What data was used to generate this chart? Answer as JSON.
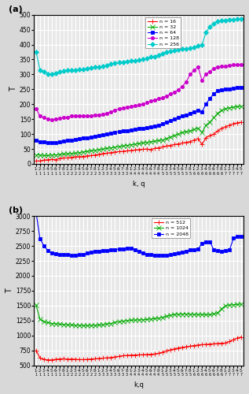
{
  "title_a": "(a)",
  "title_b": "(b)",
  "xlabel": "k, q",
  "xlabel_b": "k,q",
  "ylabel": "T",
  "background_color": "#e8e8e8",
  "grid_color": "#ffffff",
  "legend_a": [
    "n = 16",
    "n = 32",
    "n = 64",
    "n = 128",
    "n = 256"
  ],
  "legend_b": [
    "n = 512",
    "n = 1024",
    "n = 2048"
  ],
  "colors_a": [
    "#ff0000",
    "#00aa00",
    "#0000ff",
    "#cc00cc",
    "#00cccc"
  ],
  "colors_b": [
    "#ff0000",
    "#00aa00",
    "#0000ff"
  ],
  "ylim_a": [
    0,
    500
  ],
  "ylim_b": [
    500,
    3000
  ],
  "yticks_a": [
    0,
    50,
    100,
    150,
    200,
    250,
    300,
    350,
    400,
    450,
    500
  ],
  "yticks_b": [
    500,
    750,
    1000,
    1250,
    1500,
    1750,
    2000,
    2250,
    2500,
    2750,
    3000
  ],
  "n16": [
    10,
    10,
    13,
    14,
    15,
    14,
    18,
    20,
    20,
    22,
    24,
    24,
    25,
    27,
    28,
    30,
    32,
    35,
    36,
    38,
    40,
    41,
    42,
    44,
    45,
    47,
    48,
    49,
    50,
    48,
    52,
    54,
    57,
    60,
    62,
    65,
    67,
    70,
    72,
    75,
    80,
    85,
    65,
    88,
    95,
    100,
    110,
    120,
    125,
    130,
    135,
    138,
    140
  ],
  "n32": [
    30,
    30,
    28,
    28,
    30,
    30,
    32,
    33,
    34,
    35,
    36,
    38,
    40,
    42,
    44,
    46,
    48,
    50,
    52,
    54,
    56,
    58,
    60,
    62,
    64,
    66,
    68,
    70,
    72,
    74,
    76,
    78,
    80,
    85,
    90,
    95,
    100,
    105,
    108,
    110,
    115,
    120,
    105,
    130,
    140,
    155,
    170,
    180,
    185,
    188,
    190,
    192,
    193
  ],
  "n64": [
    80,
    75,
    73,
    72,
    72,
    72,
    74,
    76,
    78,
    80,
    82,
    84,
    86,
    88,
    90,
    92,
    95,
    98,
    100,
    103,
    106,
    108,
    110,
    112,
    114,
    116,
    118,
    120,
    122,
    124,
    126,
    130,
    135,
    140,
    145,
    150,
    155,
    160,
    165,
    170,
    175,
    180,
    175,
    200,
    220,
    235,
    245,
    248,
    250,
    252,
    253,
    255,
    256
  ],
  "n128": [
    185,
    160,
    155,
    150,
    148,
    150,
    152,
    155,
    157,
    160,
    162,
    162,
    160,
    160,
    162,
    163,
    165,
    167,
    170,
    175,
    180,
    185,
    188,
    190,
    192,
    195,
    197,
    200,
    205,
    210,
    215,
    218,
    222,
    228,
    234,
    240,
    248,
    260,
    275,
    300,
    315,
    325,
    280,
    300,
    310,
    320,
    325,
    327,
    328,
    330,
    332,
    333,
    333
  ],
  "n256": [
    375,
    315,
    310,
    302,
    302,
    305,
    308,
    312,
    315,
    315,
    315,
    316,
    318,
    320,
    322,
    324,
    325,
    327,
    330,
    335,
    338,
    340,
    342,
    344,
    345,
    347,
    348,
    350,
    353,
    358,
    360,
    365,
    370,
    375,
    378,
    380,
    382,
    385,
    386,
    388,
    390,
    395,
    400,
    440,
    460,
    470,
    478,
    480,
    482,
    483,
    484,
    485,
    485
  ],
  "n512": [
    750,
    620,
    600,
    590,
    590,
    600,
    605,
    610,
    600,
    605,
    600,
    595,
    595,
    600,
    605,
    610,
    615,
    620,
    625,
    630,
    640,
    650,
    660,
    665,
    670,
    672,
    675,
    678,
    680,
    685,
    690,
    700,
    720,
    740,
    760,
    775,
    790,
    800,
    810,
    820,
    830,
    840,
    845,
    850,
    855,
    860,
    865,
    870,
    875,
    900,
    930,
    960,
    975
  ],
  "n1024": [
    1510,
    1270,
    1230,
    1215,
    1200,
    1195,
    1190,
    1185,
    1180,
    1175,
    1170,
    1170,
    1165,
    1165,
    1168,
    1170,
    1175,
    1180,
    1195,
    1200,
    1220,
    1230,
    1240,
    1250,
    1255,
    1258,
    1260,
    1262,
    1268,
    1275,
    1280,
    1290,
    1305,
    1320,
    1338,
    1350,
    1355,
    1358,
    1358,
    1355,
    1352,
    1350,
    1350,
    1348,
    1350,
    1360,
    1380,
    1450,
    1500,
    1510,
    1515,
    1520,
    1525
  ],
  "n2048": [
    3060,
    2620,
    2500,
    2420,
    2385,
    2370,
    2360,
    2355,
    2350,
    2345,
    2345,
    2350,
    2360,
    2380,
    2395,
    2405,
    2415,
    2420,
    2425,
    2430,
    2440,
    2450,
    2455,
    2460,
    2465,
    2430,
    2410,
    2380,
    2360,
    2350,
    2345,
    2340,
    2340,
    2345,
    2355,
    2365,
    2380,
    2395,
    2415,
    2430,
    2440,
    2445,
    2540,
    2570,
    2570,
    2435,
    2420,
    2415,
    2420,
    2440,
    2630,
    2660,
    2660
  ]
}
